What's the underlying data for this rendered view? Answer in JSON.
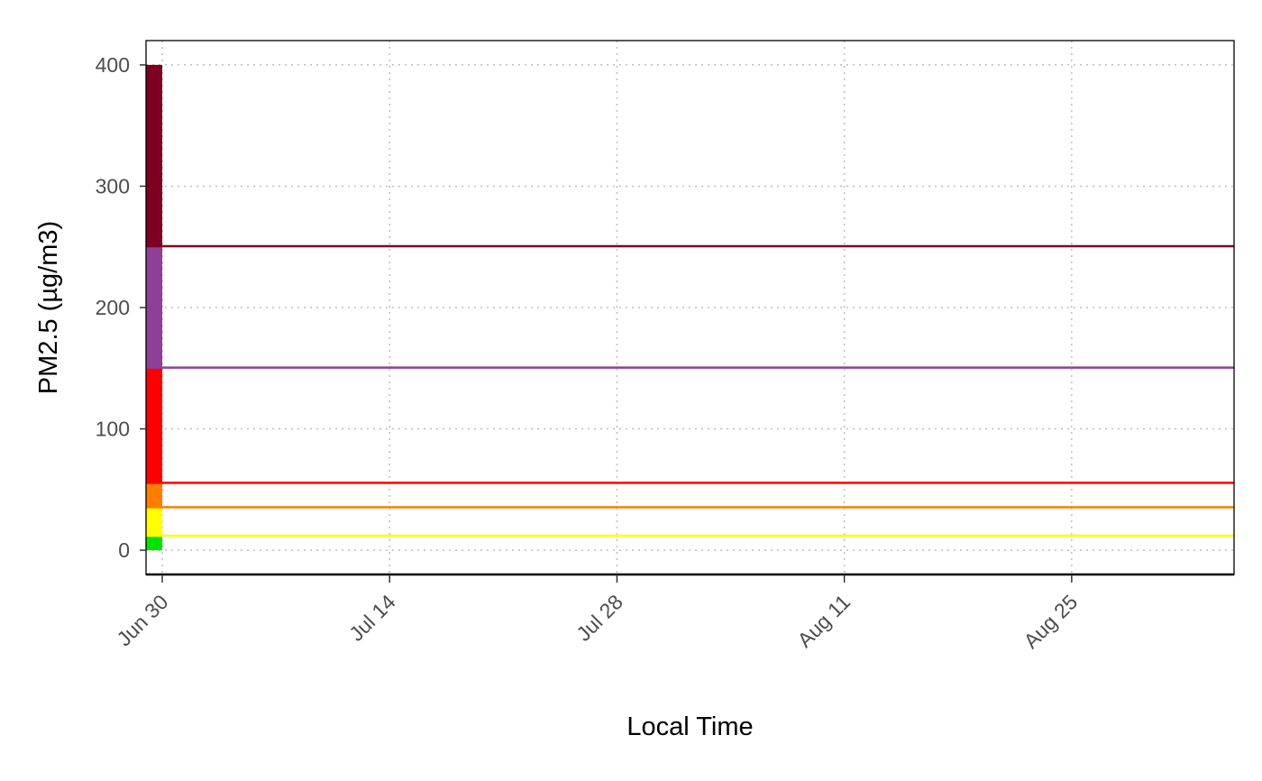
{
  "chart_data": {
    "type": "line",
    "title": "",
    "xlabel": "Local Time",
    "ylabel": "PM2.5 (µg/m3)",
    "x_range": [
      "2019-06-29",
      "2019-09-04"
    ],
    "ylim": [
      -20,
      420
    ],
    "x_ticks": [
      {
        "date": "2019-06-30",
        "label": "Jun 30"
      },
      {
        "date": "2019-07-14",
        "label": "Jul 14"
      },
      {
        "date": "2019-07-28",
        "label": "Jul 28"
      },
      {
        "date": "2019-08-11",
        "label": "Aug 11"
      },
      {
        "date": "2019-08-25",
        "label": "Aug 25"
      }
    ],
    "y_ticks": [
      0,
      100,
      200,
      300,
      400
    ],
    "grid": true,
    "aqi_bar": {
      "x_range": [
        "2019-06-29",
        "2019-06-30"
      ],
      "bands": [
        {
          "from": 0,
          "to": 12,
          "color": "#00e400"
        },
        {
          "from": 12,
          "to": 35.5,
          "color": "#ffff00"
        },
        {
          "from": 35.5,
          "to": 55.5,
          "color": "#ff7e00"
        },
        {
          "from": 55.5,
          "to": 150.5,
          "color": "#ff0000"
        },
        {
          "from": 150.5,
          "to": 250.5,
          "color": "#8f3f97"
        },
        {
          "from": 250.5,
          "to": 400,
          "color": "#7e0023"
        }
      ]
    },
    "threshold_lines": [
      {
        "y": 12,
        "color": "#ffff00"
      },
      {
        "y": 35.5,
        "color": "#ff7e00"
      },
      {
        "y": 55.5,
        "color": "#ff0000"
      },
      {
        "y": 150.5,
        "color": "#8f3f97"
      },
      {
        "y": 250.5,
        "color": "#7e0023"
      }
    ]
  }
}
